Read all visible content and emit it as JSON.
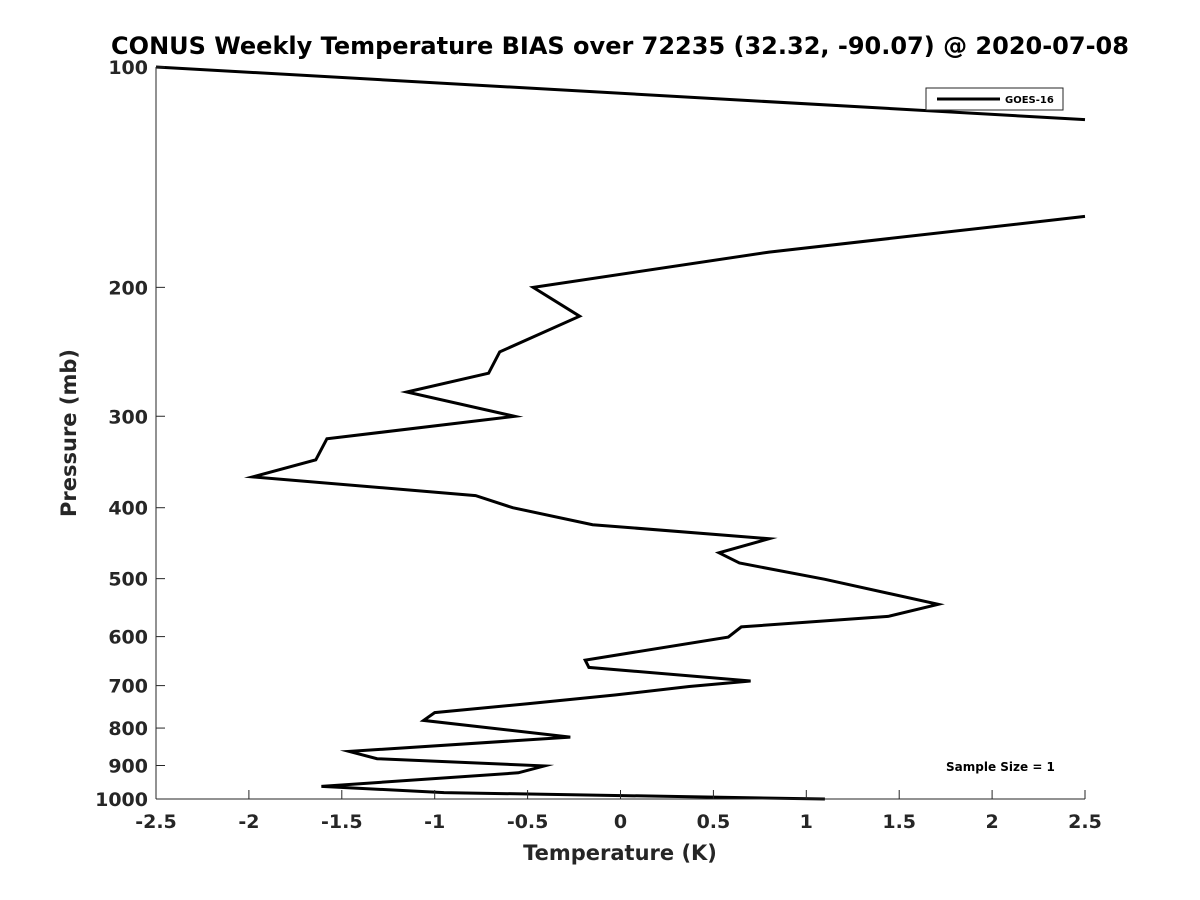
{
  "chart_data": {
    "type": "line",
    "title": "CONUS Weekly Temperature BIAS over 72235 (32.32, -90.07) @ 2020-07-08",
    "xlabel": "Temperature (K)",
    "ylabel": "Pressure (mb)",
    "xlim": [
      -2.5,
      2.5
    ],
    "ylim": [
      100,
      1000
    ],
    "y_scale": "log",
    "y_reversed": true,
    "x_ticks": [
      "-2.5",
      "-2",
      "-1.5",
      "-1",
      "-0.5",
      "0",
      "0.5",
      "1",
      "1.5",
      "2",
      "2.5"
    ],
    "y_ticks": [
      "100",
      "200",
      "300",
      "400",
      "500",
      "600",
      "700",
      "800",
      "900",
      "1000"
    ],
    "grid": false,
    "legend": {
      "position": "top-right",
      "entries": [
        "GOES-16"
      ]
    },
    "annotation": "Sample Size = 1",
    "series": [
      {
        "name": "GOES-16",
        "color": "#000000",
        "segments": [
          [
            {
              "x": -2.5,
              "y": 100
            },
            {
              "x": 2.5,
              "y": 118
            }
          ],
          [
            {
              "x": 2.5,
              "y": 160
            },
            {
              "x": 0.8,
              "y": 179
            },
            {
              "x": -0.47,
              "y": 200
            },
            {
              "x": -0.22,
              "y": 219
            },
            {
              "x": -0.65,
              "y": 245
            },
            {
              "x": -0.71,
              "y": 262
            },
            {
              "x": -1.15,
              "y": 278
            },
            {
              "x": -0.57,
              "y": 300
            },
            {
              "x": -1.58,
              "y": 322
            },
            {
              "x": -1.64,
              "y": 344
            },
            {
              "x": -1.98,
              "y": 363
            },
            {
              "x": -0.78,
              "y": 385
            },
            {
              "x": -0.58,
              "y": 400
            },
            {
              "x": -0.15,
              "y": 422
            },
            {
              "x": 0.8,
              "y": 441
            },
            {
              "x": 0.53,
              "y": 461
            },
            {
              "x": 0.64,
              "y": 476
            },
            {
              "x": 1.1,
              "y": 501
            },
            {
              "x": 1.71,
              "y": 542
            },
            {
              "x": 1.44,
              "y": 563
            },
            {
              "x": 0.65,
              "y": 582
            },
            {
              "x": 0.58,
              "y": 601
            },
            {
              "x": -0.19,
              "y": 646
            },
            {
              "x": -0.17,
              "y": 661
            },
            {
              "x": 0.7,
              "y": 690
            },
            {
              "x": 0.37,
              "y": 702
            },
            {
              "x": -0.03,
              "y": 721
            },
            {
              "x": -0.5,
              "y": 741
            },
            {
              "x": -1.0,
              "y": 762
            },
            {
              "x": -1.06,
              "y": 781
            },
            {
              "x": -0.27,
              "y": 823
            },
            {
              "x": -1.46,
              "y": 861
            },
            {
              "x": -1.31,
              "y": 881
            },
            {
              "x": -0.41,
              "y": 901
            },
            {
              "x": -0.55,
              "y": 921
            },
            {
              "x": -1.61,
              "y": 961
            },
            {
              "x": -0.95,
              "y": 980
            },
            {
              "x": 1.1,
              "y": 1000
            }
          ]
        ]
      }
    ]
  }
}
